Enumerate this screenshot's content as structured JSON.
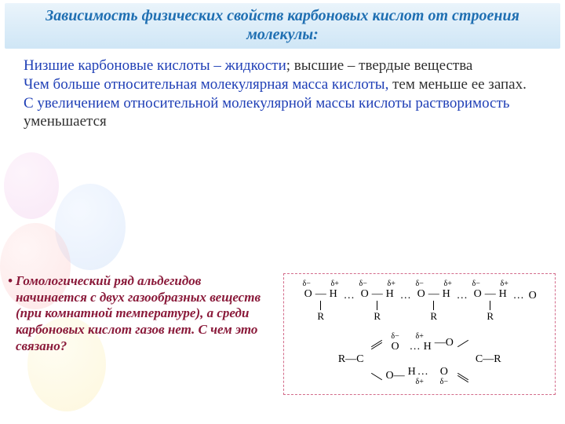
{
  "colors": {
    "title_text": "#1f6fb2",
    "title_bg_top": "#eaf4fb",
    "title_bg_bottom": "#cfe6f6",
    "body_text": "#303030",
    "accent_blue": "#1f3fb6",
    "question_text": "#8a1a3a",
    "diagram_border": "#d36b8a",
    "background": "#ffffff"
  },
  "typography": {
    "family": "Times New Roman",
    "title_size_pt": 20,
    "body_size_pt": 19,
    "question_size_pt": 17,
    "title_style": "bold italic",
    "question_style": "bold italic"
  },
  "title": "Зависимость физических свойств карбоновых кислот от строения молекулы:",
  "body": {
    "line1_blue": "Низшие карбоновые кислоты – жидкости",
    "line1_rest": "; высшие – твердые вещества",
    "line2_blue": "Чем больше относительная молекулярная масса кислоты,",
    "line2_rest": " тем меньше ее запах.",
    "line3_blue": "С увеличением относительной молекулярной массы кислоты растворимость",
    "line3_rest": " уменьшается"
  },
  "question": {
    "bullet": "•",
    "text": "Гомологический ряд альдегидов начинается с двух газообразных веществ (при комнатной температуре),  а среди карбоновых кислот газов нет.  С чем это связано?"
  },
  "diagram": {
    "chain": {
      "repeat_units": 4,
      "charges": {
        "O": "δ−",
        "H": "δ+"
      },
      "atoms": {
        "O": "O",
        "H": "H",
        "R": "R"
      },
      "bond_single": "—",
      "hbond_dots": "…",
      "trailing_atom": "O"
    },
    "dimer": {
      "left_group": "R—C",
      "right_group": "C—R",
      "O": "O",
      "H": "H",
      "charges": {
        "O": "δ−",
        "H": "δ+"
      },
      "hbond_dots": "…"
    }
  }
}
